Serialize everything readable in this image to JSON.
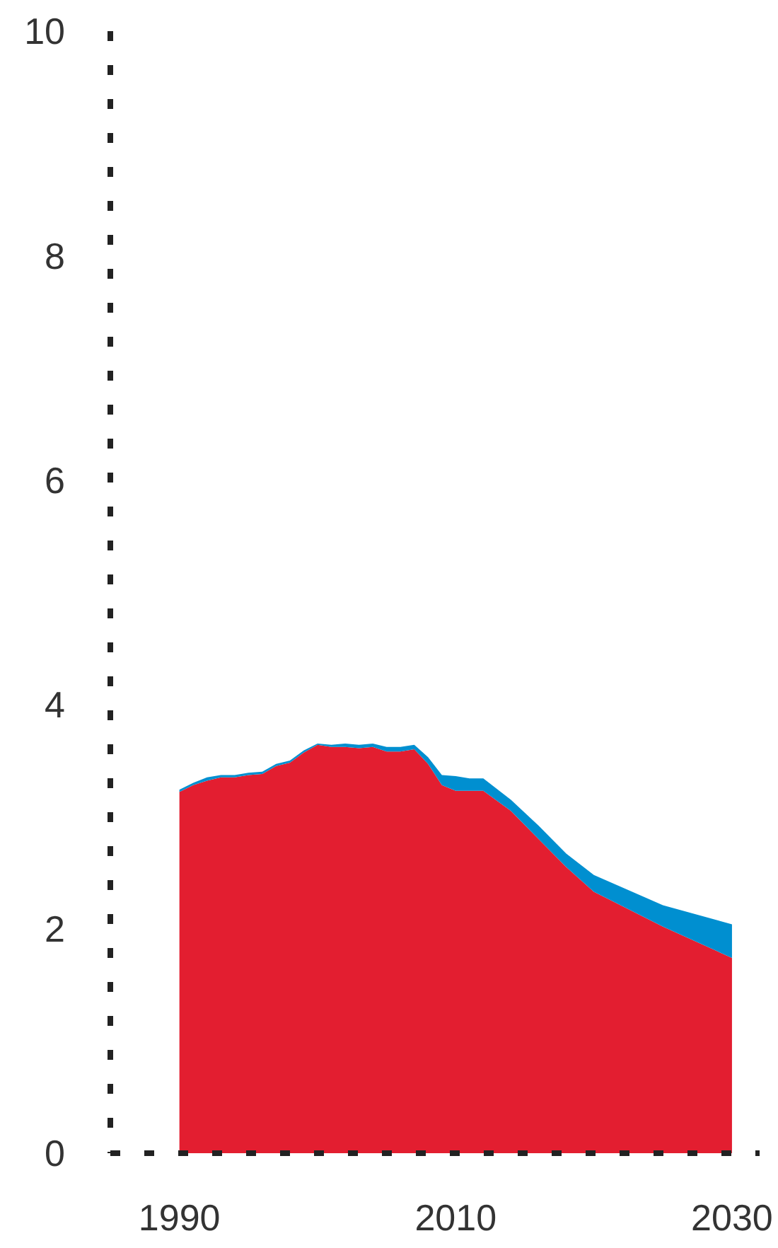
{
  "chart_data": {
    "type": "area",
    "stacked": true,
    "x": [
      1990,
      1991,
      1992,
      1993,
      1994,
      1995,
      1996,
      1997,
      1998,
      1999,
      2000,
      2001,
      2002,
      2003,
      2004,
      2005,
      2006,
      2007,
      2008,
      2009,
      2010,
      2011,
      2012,
      2014,
      2016,
      2018,
      2020,
      2025,
      2030
    ],
    "series": [
      {
        "color": "#e31e30",
        "values": [
          3.22,
          3.28,
          3.32,
          3.35,
          3.35,
          3.37,
          3.38,
          3.45,
          3.48,
          3.57,
          3.64,
          3.62,
          3.62,
          3.61,
          3.62,
          3.58,
          3.58,
          3.6,
          3.47,
          3.28,
          3.23,
          3.23,
          3.23,
          3.05,
          2.8,
          2.55,
          2.33,
          2.02,
          1.74
        ]
      },
      {
        "color": "#008fd0",
        "values": [
          0.02,
          0.02,
          0.03,
          0.02,
          0.02,
          0.02,
          0.02,
          0.02,
          0.02,
          0.02,
          0.01,
          0.02,
          0.03,
          0.03,
          0.03,
          0.04,
          0.04,
          0.04,
          0.06,
          0.09,
          0.13,
          0.11,
          0.11,
          0.1,
          0.12,
          0.12,
          0.15,
          0.19,
          0.3
        ]
      }
    ],
    "xlim": [
      1985,
      2032
    ],
    "xticks": [
      1990,
      2010,
      2030
    ],
    "ylim": [
      0,
      10
    ],
    "yticks": [
      0,
      2,
      4,
      6,
      8,
      10
    ]
  }
}
